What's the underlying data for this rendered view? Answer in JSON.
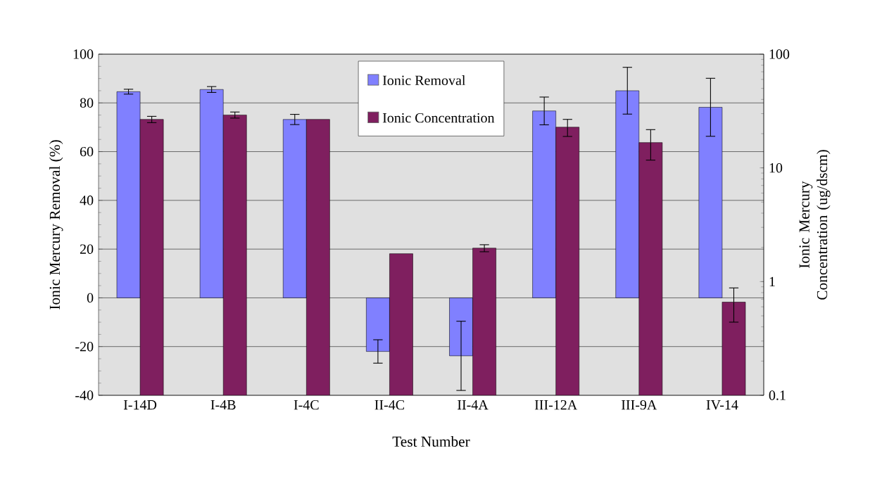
{
  "chart_data": {
    "type": "bar",
    "xlabel": "Test Number",
    "ylabel": "Ionic Mercury Removal (%)",
    "y2label": "Ionic Mercury Concentration (ug/dscm)",
    "categories": [
      "I-14D",
      "I-4B",
      "I-4C",
      "II-4C",
      "II-4A",
      "III-12A",
      "III-9A",
      "IV-14"
    ],
    "series": [
      {
        "name": "Ionic Removal",
        "color": "#8080ff",
        "values": [
          84.6,
          85.5,
          73.2,
          -22.0,
          -23.8,
          76.7,
          85.0,
          78.2
        ],
        "errors": [
          1.0,
          1.2,
          2.1,
          4.8,
          14.2,
          5.7,
          9.6,
          11.9
        ]
      },
      {
        "name": "Ionic Concentration",
        "color": "#7f1f5f",
        "axis": "y2",
        "values": [
          26.7,
          29.2,
          26.7,
          1.76,
          1.97,
          22.8,
          16.7,
          0.66
        ],
        "errors": [
          1.7,
          1.8,
          null,
          null,
          0.14,
          3.9,
          5,
          0.22
        ]
      }
    ],
    "ylim": [
      -40,
      100
    ],
    "yticks": [
      -40,
      -20,
      0,
      20,
      40,
      60,
      80,
      100
    ],
    "y2lim": [
      0.1,
      100
    ],
    "y2ticks": [
      0.1,
      1,
      10,
      100
    ],
    "log": "y2",
    "grid": "y",
    "legend": "top"
  }
}
